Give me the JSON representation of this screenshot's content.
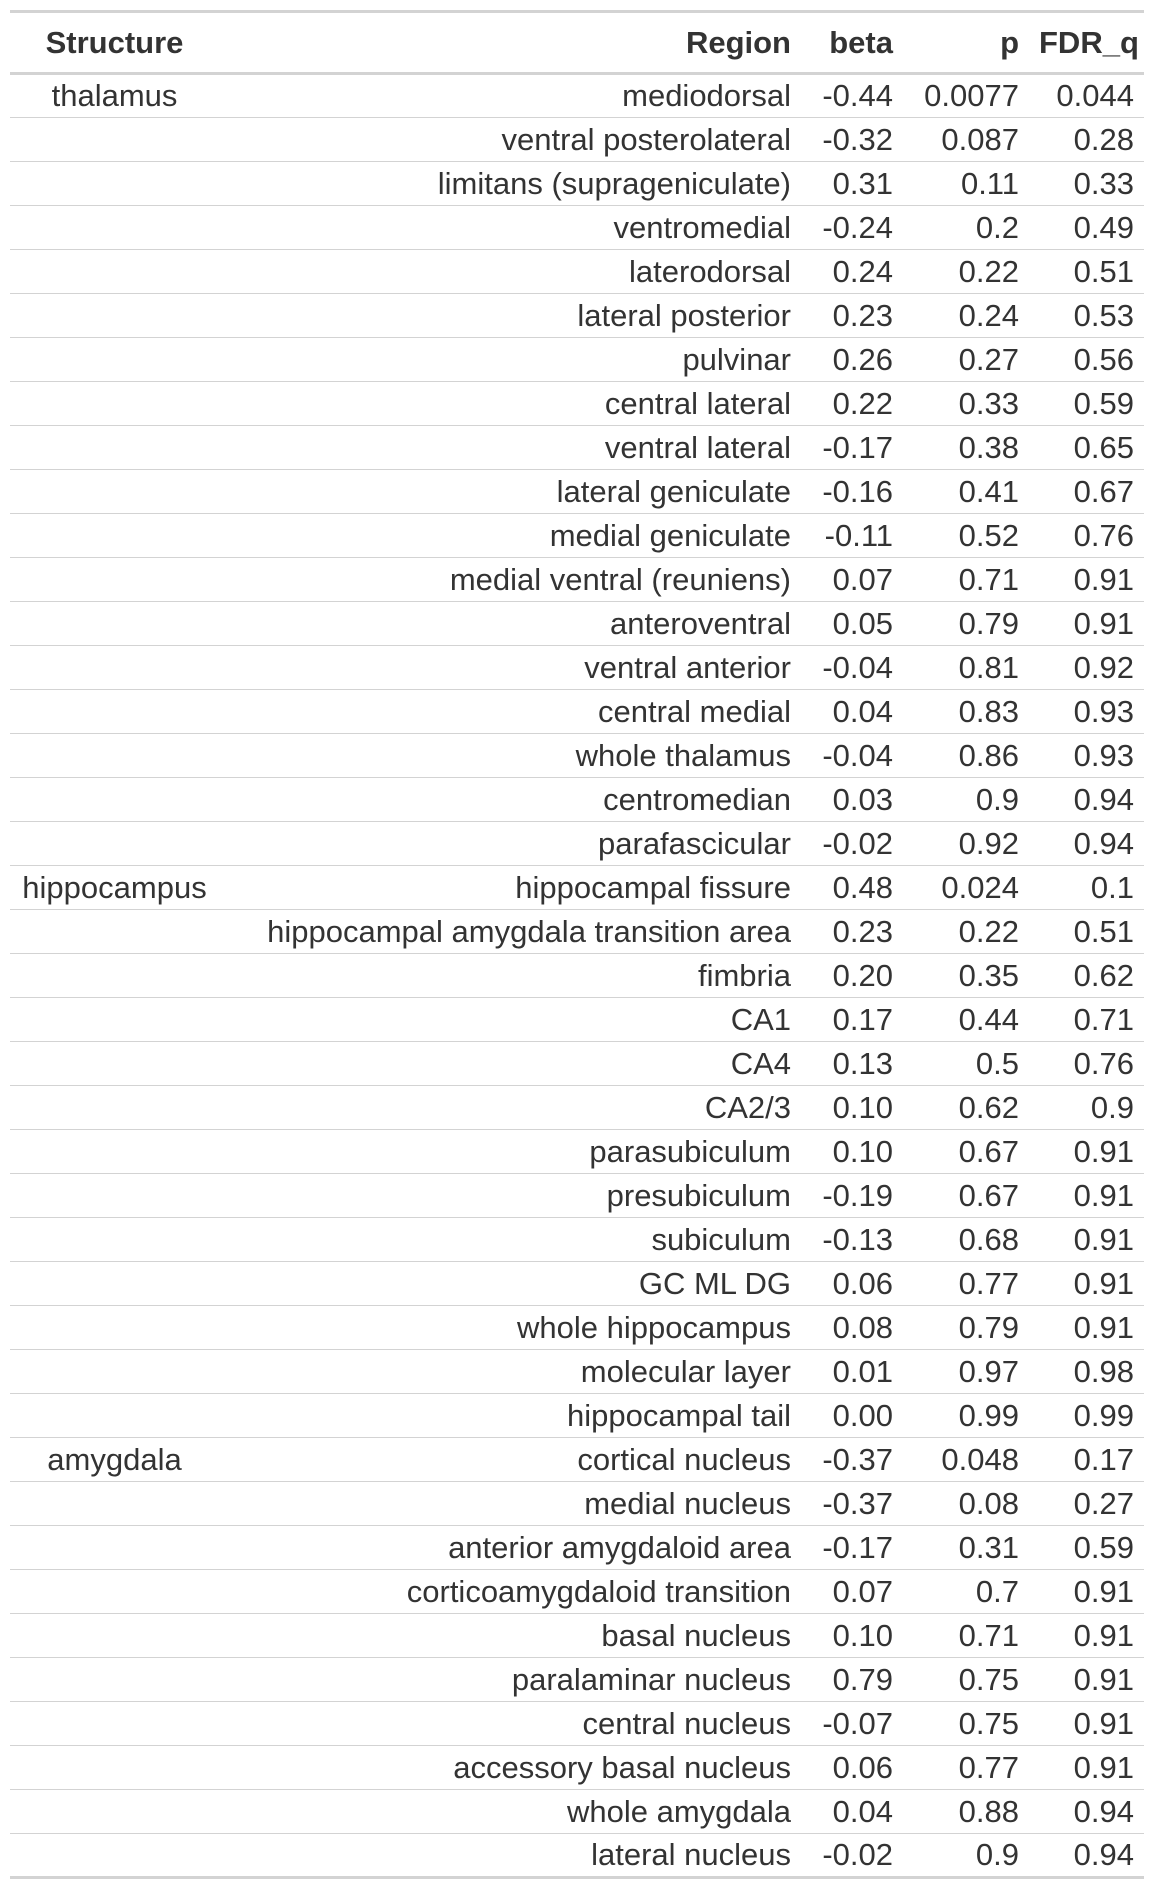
{
  "columns": [
    "Structure",
    "Region",
    "beta",
    "p",
    "FDR_q"
  ],
  "rows": [
    {
      "structure": "thalamus",
      "region": "mediodorsal",
      "beta": "-0.44",
      "p": "0.0077",
      "fdr_q": "0.044"
    },
    {
      "structure": "",
      "region": "ventral posterolateral",
      "beta": "-0.32",
      "p": "0.087",
      "fdr_q": "0.28"
    },
    {
      "structure": "",
      "region": "limitans (suprageniculate)",
      "beta": "0.31",
      "p": "0.11",
      "fdr_q": "0.33"
    },
    {
      "structure": "",
      "region": "ventromedial",
      "beta": "-0.24",
      "p": "0.2",
      "fdr_q": "0.49"
    },
    {
      "structure": "",
      "region": "laterodorsal",
      "beta": "0.24",
      "p": "0.22",
      "fdr_q": "0.51"
    },
    {
      "structure": "",
      "region": "lateral posterior",
      "beta": "0.23",
      "p": "0.24",
      "fdr_q": "0.53"
    },
    {
      "structure": "",
      "region": "pulvinar",
      "beta": "0.26",
      "p": "0.27",
      "fdr_q": "0.56"
    },
    {
      "structure": "",
      "region": "central lateral",
      "beta": "0.22",
      "p": "0.33",
      "fdr_q": "0.59"
    },
    {
      "structure": "",
      "region": "ventral lateral",
      "beta": "-0.17",
      "p": "0.38",
      "fdr_q": "0.65"
    },
    {
      "structure": "",
      "region": "lateral geniculate",
      "beta": "-0.16",
      "p": "0.41",
      "fdr_q": "0.67"
    },
    {
      "structure": "",
      "region": "medial geniculate",
      "beta": "-0.11",
      "p": "0.52",
      "fdr_q": "0.76"
    },
    {
      "structure": "",
      "region": "medial ventral (reuniens)",
      "beta": "0.07",
      "p": "0.71",
      "fdr_q": "0.91"
    },
    {
      "structure": "",
      "region": "anteroventral",
      "beta": "0.05",
      "p": "0.79",
      "fdr_q": "0.91"
    },
    {
      "structure": "",
      "region": "ventral anterior",
      "beta": "-0.04",
      "p": "0.81",
      "fdr_q": "0.92"
    },
    {
      "structure": "",
      "region": "central medial",
      "beta": "0.04",
      "p": "0.83",
      "fdr_q": "0.93"
    },
    {
      "structure": "",
      "region": "whole thalamus",
      "beta": "-0.04",
      "p": "0.86",
      "fdr_q": "0.93"
    },
    {
      "structure": "",
      "region": "centromedian",
      "beta": "0.03",
      "p": "0.9",
      "fdr_q": "0.94"
    },
    {
      "structure": "",
      "region": "parafascicular",
      "beta": "-0.02",
      "p": "0.92",
      "fdr_q": "0.94"
    },
    {
      "structure": "hippocampus",
      "region": "hippocampal fissure",
      "beta": "0.48",
      "p": "0.024",
      "fdr_q": "0.1"
    },
    {
      "structure": "",
      "region": "hippocampal amygdala transition area",
      "beta": "0.23",
      "p": "0.22",
      "fdr_q": "0.51"
    },
    {
      "structure": "",
      "region": "fimbria",
      "beta": "0.20",
      "p": "0.35",
      "fdr_q": "0.62"
    },
    {
      "structure": "",
      "region": "CA1",
      "beta": "0.17",
      "p": "0.44",
      "fdr_q": "0.71"
    },
    {
      "structure": "",
      "region": "CA4",
      "beta": "0.13",
      "p": "0.5",
      "fdr_q": "0.76"
    },
    {
      "structure": "",
      "region": "CA2/3",
      "beta": "0.10",
      "p": "0.62",
      "fdr_q": "0.9"
    },
    {
      "structure": "",
      "region": "parasubiculum",
      "beta": "0.10",
      "p": "0.67",
      "fdr_q": "0.91"
    },
    {
      "structure": "",
      "region": "presubiculum",
      "beta": "-0.19",
      "p": "0.67",
      "fdr_q": "0.91"
    },
    {
      "structure": "",
      "region": "subiculum",
      "beta": "-0.13",
      "p": "0.68",
      "fdr_q": "0.91"
    },
    {
      "structure": "",
      "region": "GC ML DG",
      "beta": "0.06",
      "p": "0.77",
      "fdr_q": "0.91"
    },
    {
      "structure": "",
      "region": "whole hippocampus",
      "beta": "0.08",
      "p": "0.79",
      "fdr_q": "0.91"
    },
    {
      "structure": "",
      "region": "molecular layer",
      "beta": "0.01",
      "p": "0.97",
      "fdr_q": "0.98"
    },
    {
      "structure": "",
      "region": "hippocampal tail",
      "beta": "0.00",
      "p": "0.99",
      "fdr_q": "0.99"
    },
    {
      "structure": "amygdala",
      "region": "cortical nucleus",
      "beta": "-0.37",
      "p": "0.048",
      "fdr_q": "0.17"
    },
    {
      "structure": "",
      "region": "medial nucleus",
      "beta": "-0.37",
      "p": "0.08",
      "fdr_q": "0.27"
    },
    {
      "structure": "",
      "region": "anterior amygdaloid area",
      "beta": "-0.17",
      "p": "0.31",
      "fdr_q": "0.59"
    },
    {
      "structure": "",
      "region": "corticoamygdaloid transition",
      "beta": "0.07",
      "p": "0.7",
      "fdr_q": "0.91"
    },
    {
      "structure": "",
      "region": "basal nucleus",
      "beta": "0.10",
      "p": "0.71",
      "fdr_q": "0.91"
    },
    {
      "structure": "",
      "region": "paralaminar nucleus",
      "beta": "0.79",
      "p": "0.75",
      "fdr_q": "0.91"
    },
    {
      "structure": "",
      "region": "central nucleus",
      "beta": "-0.07",
      "p": "0.75",
      "fdr_q": "0.91"
    },
    {
      "structure": "",
      "region": "accessory basal nucleus",
      "beta": "0.06",
      "p": "0.77",
      "fdr_q": "0.91"
    },
    {
      "structure": "",
      "region": "whole amygdala",
      "beta": "0.04",
      "p": "0.88",
      "fdr_q": "0.94"
    },
    {
      "structure": "",
      "region": "lateral nucleus",
      "beta": "-0.02",
      "p": "0.9",
      "fdr_q": "0.94"
    }
  ]
}
